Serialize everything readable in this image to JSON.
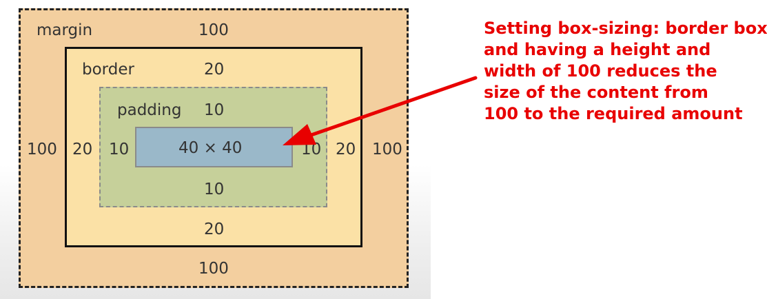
{
  "box_model": {
    "margin": {
      "label": "margin",
      "top": "100",
      "left": "100",
      "right": "100",
      "bottom": "100"
    },
    "border": {
      "label": "border",
      "top": "20",
      "left": "20",
      "right": "20",
      "bottom": "20"
    },
    "padding": {
      "label": "padding",
      "top": "10",
      "left": "10",
      "right": "10",
      "bottom": "10"
    },
    "content": {
      "dimensions": "40 × 40"
    }
  },
  "annotation": {
    "lines": [
      "Setting box-sizing: border box",
      "and having a height and",
      "width of 100 reduces the",
      "size of the content from",
      "100 to the required amount"
    ]
  },
  "colors": {
    "margin_fill": "#f3cf9f",
    "border_fill": "#fbe1a6",
    "padding_fill": "#c6d09a",
    "content_fill": "#9ab8c9",
    "annotation_red": "#e80000"
  },
  "icons": {
    "arrow": "red-arrow-icon"
  }
}
